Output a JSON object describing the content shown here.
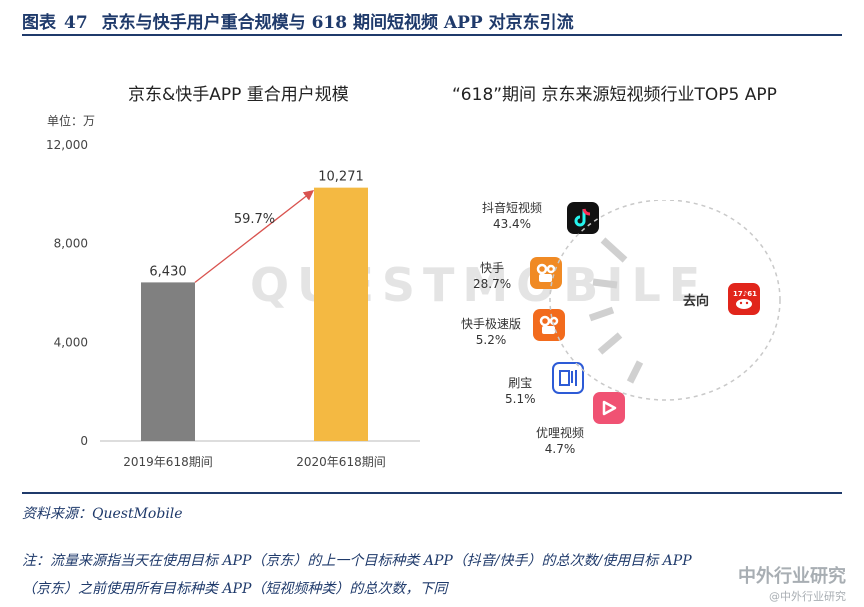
{
  "figure": {
    "label": "图表",
    "number": "47",
    "title": "京东与快手用户重合规模与 618 期间短视频 APP 对京东引流"
  },
  "chart_data": [
    {
      "type": "bar",
      "title": "京东&快手APP 重合用户规模",
      "unit_label": "单位：万",
      "categories": [
        "2019年618期间",
        "2020年618期间"
      ],
      "values": [
        6430,
        10271
      ],
      "value_labels": [
        "6,430",
        "10,271"
      ],
      "colors": [
        "#808080",
        "#f4b942"
      ],
      "ylim": [
        0,
        12000
      ],
      "yticks": [
        0,
        4000,
        8000,
        12000
      ],
      "ytick_labels": [
        "0",
        "4,000",
        "8,000",
        "12,000"
      ],
      "growth_label": "59.7%"
    },
    {
      "type": "flow",
      "title": "“618”期间 京东来源短视频行业TOP5 APP",
      "destination": "去向",
      "destination_icon": "jd-app-icon",
      "sources": [
        {
          "name": "抖音短视频",
          "share": "43.4%",
          "icon": "douyin-icon",
          "color": "#111111"
        },
        {
          "name": "快手",
          "share": "28.7%",
          "icon": "kuaishou-icon",
          "color": "#f08a24"
        },
        {
          "name": "快手极速版",
          "share": "5.2%",
          "icon": "kuaishou-lite-icon",
          "color": "#f26b1d"
        },
        {
          "name": "刷宝",
          "share": "5.1%",
          "icon": "shuabao-icon",
          "color": "#2d5bd6"
        },
        {
          "name": "优哩视频",
          "share": "4.7%",
          "icon": "youli-icon",
          "color": "#f05273"
        }
      ]
    }
  ],
  "watermark": "QUESTMOBILE",
  "source": "资料来源：QuestMobile",
  "note_line1": "注：流量来源指当天在使用目标 APP（京东）的上一个目标种类 APP（抖音/快手）的总次数/使用目标 APP",
  "note_line2": "（京东）之前使用所有目标种类 APP（短视频种类）的总次数，下同",
  "corner_watermark": "中外行业研究",
  "corner_watermark_sub": "@中外行业研究"
}
